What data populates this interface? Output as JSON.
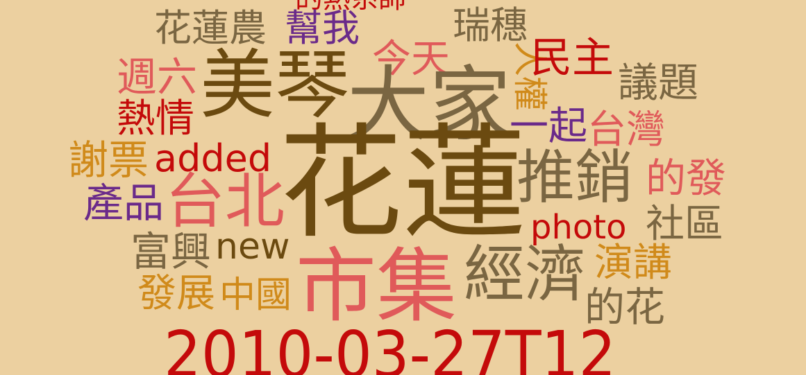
{
  "background": "#ecd0a0",
  "palette": {
    "brown": "#6b4a10",
    "olive": "#7a6642",
    "red": "#c40a0a",
    "pink": "#e05a5a",
    "purple": "#6a2a8a",
    "gold": "#d08a1a"
  },
  "words": {
    "w01": "花蓮",
    "w02": "美琴",
    "w03": "大家",
    "w04": "市集",
    "w05": "台北",
    "w06": "推銷",
    "w07": "經濟",
    "w08": "2010-03-27T12",
    "w09": "花蓮農",
    "w10": "幫我",
    "w11": "瑞穗",
    "w12": "今天",
    "w13": "民主",
    "w14": "人權",
    "w15": "議題",
    "w16": "週六",
    "w17": "熱情",
    "w18": "一起",
    "w19": "台灣",
    "w20": "謝票",
    "w21": "added",
    "w22": "的發",
    "w23": "產品",
    "w24": "photo",
    "w25": "社區",
    "w26": "富興",
    "w27": "new",
    "w28": "演講",
    "w29": "發展",
    "w30": "中國",
    "w31": "的花",
    "w32": "的熱系師"
  }
}
